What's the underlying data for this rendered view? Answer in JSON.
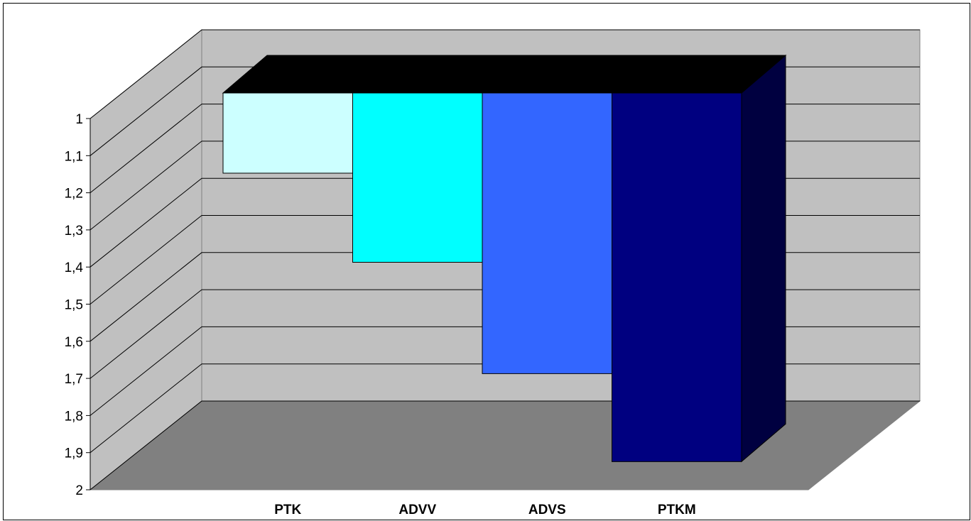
{
  "chart_data": {
    "type": "bar",
    "categories": [
      "PTK",
      "ADVV",
      "ADVS",
      "PTKM"
    ],
    "values": [
      1.216,
      1.456,
      1.756,
      1.993
    ],
    "y_ticks": [
      "1",
      "1,1",
      "1,2",
      "1,3",
      "1,4",
      "1,5",
      "1,6",
      "1,7",
      "1,8",
      "1,9",
      "2"
    ],
    "ylim": [
      1,
      2
    ],
    "y_reversed": true,
    "grid": true,
    "legend": "none",
    "colors": {
      "bars": [
        "#ccffff",
        "#00ffff",
        "#3366ff",
        "#000080"
      ],
      "bar_top": "#000000",
      "back_wall": "#c0c0c0",
      "side_wall": "#c0c0c0",
      "floor": "#808080",
      "gridline": "#000000"
    }
  }
}
